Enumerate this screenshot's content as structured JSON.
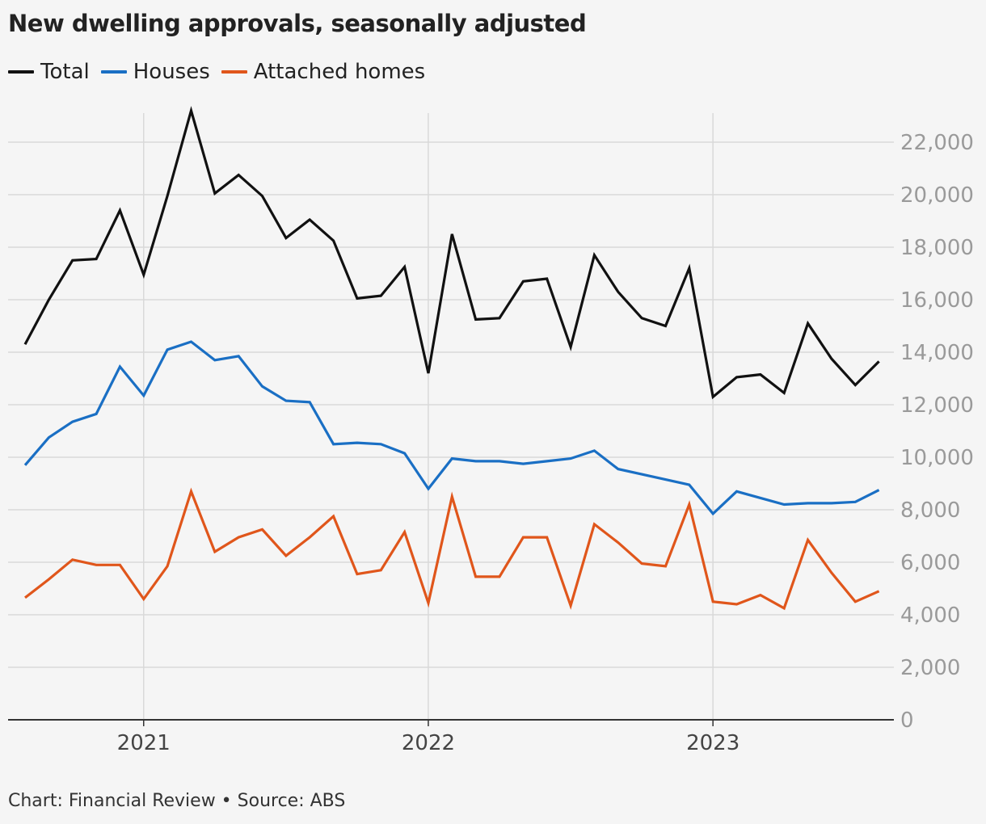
{
  "chart_data": {
    "type": "line",
    "title": "New dwelling approvals, seasonally adjusted",
    "source": "Chart: Financial Review • Source: ABS",
    "x": [
      "2020-08",
      "2020-09",
      "2020-10",
      "2020-11",
      "2020-12",
      "2021-01",
      "2021-02",
      "2021-03",
      "2021-04",
      "2021-05",
      "2021-06",
      "2021-07",
      "2021-08",
      "2021-09",
      "2021-10",
      "2021-11",
      "2021-12",
      "2022-01",
      "2022-02",
      "2022-03",
      "2022-04",
      "2022-05",
      "2022-06",
      "2022-07",
      "2022-08",
      "2022-09",
      "2022-10",
      "2022-11",
      "2022-12",
      "2023-01",
      "2023-02",
      "2023-03",
      "2023-04",
      "2023-05",
      "2023-06",
      "2023-07",
      "2023-08"
    ],
    "x_ticks": [
      {
        "date": "2021-01",
        "label": "2021"
      },
      {
        "date": "2022-01",
        "label": "2022"
      },
      {
        "date": "2023-01",
        "label": "2023"
      }
    ],
    "y_ticks": [
      {
        "value": 0,
        "label": "0"
      },
      {
        "value": 2000,
        "label": "2,000"
      },
      {
        "value": 4000,
        "label": "4,000"
      },
      {
        "value": 6000,
        "label": "6,000"
      },
      {
        "value": 8000,
        "label": "8,000"
      },
      {
        "value": 10000,
        "label": "10,000"
      },
      {
        "value": 12000,
        "label": "12,000"
      },
      {
        "value": 14000,
        "label": "14,000"
      },
      {
        "value": 16000,
        "label": "16,000"
      },
      {
        "value": 18000,
        "label": "18,000"
      },
      {
        "value": 20000,
        "label": "20,000"
      },
      {
        "value": 22000,
        "label": "22,000"
      }
    ],
    "ylim": [
      0,
      23500
    ],
    "grid": true,
    "y_axis_position": "right",
    "legend_position": "top-left",
    "series": [
      {
        "name": "Total",
        "color": "#111111",
        "values": [
          14300,
          16000,
          17500,
          17550,
          19400,
          16950,
          19950,
          23200,
          20050,
          20750,
          19950,
          18350,
          19050,
          18250,
          16050,
          16150,
          17250,
          13200,
          18500,
          15250,
          15300,
          16700,
          16800,
          14200,
          17700,
          16300,
          15300,
          15000,
          17200,
          12300,
          13050,
          13150,
          12450,
          15100,
          13750,
          12750,
          13650
        ]
      },
      {
        "name": "Houses",
        "color": "#1a6fc4",
        "values": [
          9700,
          10750,
          11350,
          11650,
          13450,
          12350,
          14100,
          14400,
          13700,
          13850,
          12700,
          12150,
          12100,
          10500,
          10550,
          10500,
          10150,
          8800,
          9950,
          9850,
          9850,
          9750,
          9850,
          9950,
          10250,
          9550,
          9350,
          9150,
          8950,
          7850,
          8700,
          8450,
          8200,
          8250,
          8250,
          8300,
          8750
        ]
      },
      {
        "name": "Attached homes",
        "color": "#e0561b",
        "values": [
          4650,
          5350,
          6100,
          5900,
          5900,
          4600,
          5850,
          8700,
          6400,
          6950,
          7250,
          6250,
          6950,
          7750,
          5550,
          5700,
          7150,
          4450,
          8500,
          5450,
          5450,
          6950,
          6950,
          4350,
          7450,
          6750,
          5950,
          5850,
          8200,
          4500,
          4400,
          4750,
          4250,
          6850,
          5600,
          4500,
          4900
        ]
      }
    ]
  }
}
